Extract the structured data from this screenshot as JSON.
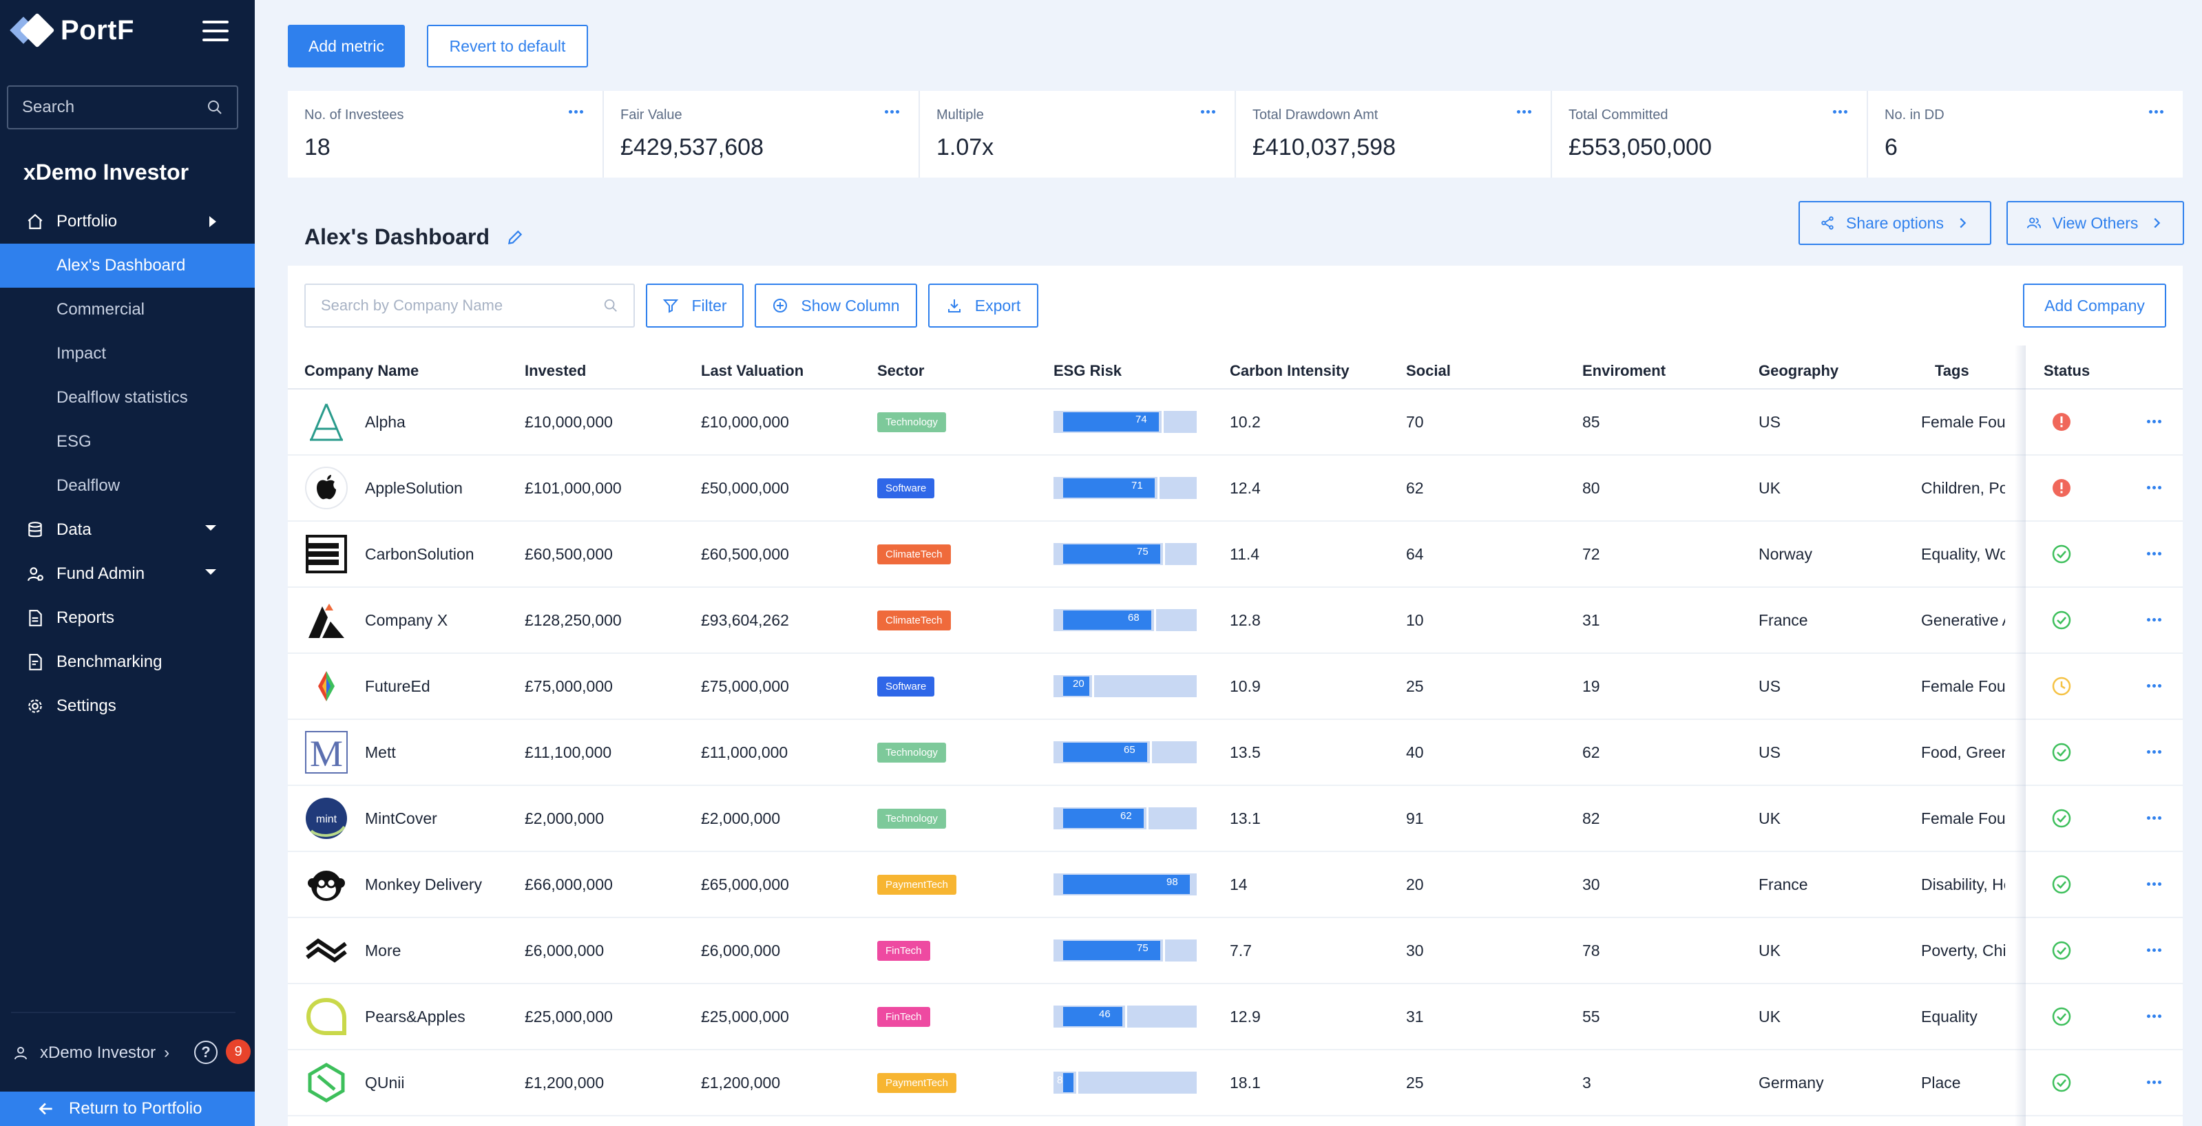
{
  "app": {
    "logo_text": "PortF"
  },
  "sidebar": {
    "search_placeholder": "Search",
    "org_name": "xDemo Investor",
    "nav": {
      "portfolio": "Portfolio",
      "sub": [
        "Alex's Dashboard",
        "Commercial",
        "Impact",
        "Dealflow statistics",
        "ESG",
        "Dealflow"
      ],
      "data": "Data",
      "fund_admin": "Fund Admin",
      "reports": "Reports",
      "benchmarking": "Benchmarking",
      "settings": "Settings"
    },
    "user": "xDemo Investor",
    "help_badge": "9",
    "return_label": "Return to Portfolio"
  },
  "toolbar": {
    "add_metric": "Add metric",
    "revert": "Revert to default"
  },
  "metrics": [
    {
      "label": "No. of Investees",
      "value": "18"
    },
    {
      "label": "Fair Value",
      "value": "£429,537,608"
    },
    {
      "label": "Multiple",
      "value": "1.07x"
    },
    {
      "label": "Total Drawdown Amt",
      "value": "£410,037,598"
    },
    {
      "label": "Total Committed",
      "value": "£553,050,000"
    },
    {
      "label": "No. in DD",
      "value": "6"
    }
  ],
  "dashboard": {
    "title": "Alex's Dashboard",
    "share_label": "Share options",
    "view_others_label": "View Others",
    "search_placeholder": "Search by Company Name",
    "filter_label": "Filter",
    "show_column_label": "Show Column",
    "export_label": "Export",
    "add_company_label": "Add Company"
  },
  "table": {
    "columns": [
      "Company Name",
      "Invested",
      "Last Valuation",
      "Sector",
      "ESG Risk",
      "Carbon Intensity",
      "Social",
      "Enviroment",
      "Geography",
      "Tags",
      "Status"
    ],
    "rows": [
      {
        "logo": "alpha-logo",
        "name": "Alpha",
        "invested": "£10,000,000",
        "valuation": "£10,000,000",
        "sector": "Technology",
        "sector_color": "#7dc99a",
        "esg": "74",
        "esg_value": 74,
        "carbon": "10.2",
        "social": "70",
        "env": "85",
        "geo": "US",
        "tags": "Female Founder",
        "status": "alert"
      },
      {
        "logo": "apple-logo",
        "name": "AppleSolution",
        "invested": "£101,000,000",
        "valuation": "£50,000,000",
        "sector": "Software",
        "sector_color": "#2f67e8",
        "esg": "71",
        "esg_value": 71,
        "carbon": "12.4",
        "social": "62",
        "env": "80",
        "geo": "UK",
        "tags": "Children, Poverty",
        "status": "alert"
      },
      {
        "logo": "carbon-logo",
        "name": "CarbonSolution",
        "invested": "£60,500,000",
        "valuation": "£60,500,000",
        "sector": "ClimateTech",
        "sector_color": "#ef6a3b",
        "esg": "75",
        "esg_value": 75,
        "carbon": "11.4",
        "social": "64",
        "env": "72",
        "geo": "Norway",
        "tags": "Equality, Women",
        "status": "ok"
      },
      {
        "logo": "companyx-logo",
        "name": "Company X",
        "invested": "£128,250,000",
        "valuation": "£93,604,262",
        "sector": "ClimateTech",
        "sector_color": "#ef6a3b",
        "esg": "68",
        "esg_value": 68,
        "carbon": "12.8",
        "social": "10",
        "env": "31",
        "geo": "France",
        "tags": "Generative AI",
        "status": "ok"
      },
      {
        "logo": "futureed-logo",
        "name": "FutureEd",
        "invested": "£75,000,000",
        "valuation": "£75,000,000",
        "sector": "Software",
        "sector_color": "#2f67e8",
        "esg": "20",
        "esg_value": 20,
        "carbon": "10.9",
        "social": "25",
        "env": "19",
        "geo": "US",
        "tags": "Female Founder",
        "status": "pending"
      },
      {
        "logo": "mett-logo",
        "name": "Mett",
        "invested": "£11,100,000",
        "valuation": "£11,000,000",
        "sector": "Technology",
        "sector_color": "#7dc99a",
        "esg": "65",
        "esg_value": 65,
        "carbon": "13.5",
        "social": "40",
        "env": "62",
        "geo": "US",
        "tags": "Food, Green",
        "status": "ok"
      },
      {
        "logo": "mintcover-logo",
        "name": "MintCover",
        "invested": "£2,000,000",
        "valuation": "£2,000,000",
        "sector": "Technology",
        "sector_color": "#7dc99a",
        "esg": "62",
        "esg_value": 62,
        "carbon": "13.1",
        "social": "91",
        "env": "82",
        "geo": "UK",
        "tags": "Female Founder",
        "status": "ok"
      },
      {
        "logo": "monkey-logo",
        "name": "Monkey Delivery",
        "invested": "£66,000,000",
        "valuation": "£65,000,000",
        "sector": "PaymentTech",
        "sector_color": "#f7b531",
        "esg": "98",
        "esg_value": 98,
        "carbon": "14",
        "social": "20",
        "env": "30",
        "geo": "France",
        "tags": "Disability, Health",
        "status": "ok"
      },
      {
        "logo": "more-logo",
        "name": "More",
        "invested": "£6,000,000",
        "valuation": "£6,000,000",
        "sector": "FinTech",
        "sector_color": "#ee4aa1",
        "esg": "75",
        "esg_value": 75,
        "carbon": "7.7",
        "social": "30",
        "env": "78",
        "geo": "UK",
        "tags": "Poverty, Children",
        "status": "ok"
      },
      {
        "logo": "pears-logo",
        "name": "Pears&Apples",
        "invested": "£25,000,000",
        "valuation": "£25,000,000",
        "sector": "FinTech",
        "sector_color": "#ee4aa1",
        "esg": "46",
        "esg_value": 46,
        "carbon": "12.9",
        "social": "31",
        "env": "55",
        "geo": "UK",
        "tags": "Equality",
        "status": "ok"
      },
      {
        "logo": "qunii-logo",
        "name": "QUnii",
        "invested": "£1,200,000",
        "valuation": "£1,200,000",
        "sector": "PaymentTech",
        "sector_color": "#f7b531",
        "esg": "8",
        "esg_value": 8,
        "carbon": "18.1",
        "social": "25",
        "env": "3",
        "geo": "Germany",
        "tags": "Place",
        "status": "ok"
      }
    ]
  },
  "colors": {
    "sidebar_bg": "#0d1f3e",
    "accent": "#2f80ed",
    "page_bg": "#eef3fb",
    "alert": "#f0675a",
    "ok": "#3dbf5b",
    "pending": "#f5c244"
  }
}
